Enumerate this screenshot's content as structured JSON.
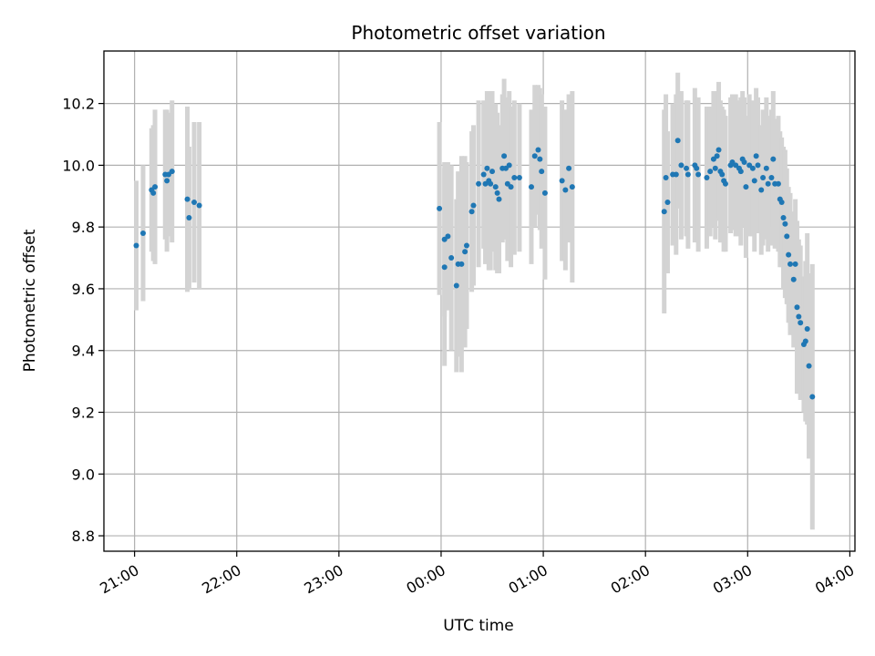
{
  "chart_data": {
    "type": "scatter",
    "title": "Photometric offset variation",
    "xlabel": "UTC time",
    "ylabel": "Photometric offset",
    "x_unit": "UTC",
    "xlim": [
      "20:42",
      "04:03"
    ],
    "ylim": [
      8.75,
      10.37
    ],
    "x_ticks": [
      "21:00",
      "22:00",
      "23:00",
      "00:00",
      "01:00",
      "02:00",
      "03:00",
      "04:00"
    ],
    "y_ticks": [
      "8.8",
      "9.0",
      "9.2",
      "9.4",
      "9.6",
      "9.8",
      "10.0",
      "10.2"
    ],
    "grid": true,
    "point_color": "#1f77b4",
    "errorbar_color": "#d3d3d3",
    "series": [
      {
        "points": [
          [
            "21:01",
            9.74,
            0.21
          ],
          [
            "21:05",
            9.78,
            0.22
          ],
          [
            "21:10",
            9.92,
            0.2
          ],
          [
            "21:11",
            9.91,
            0.22
          ],
          [
            "21:12",
            9.93,
            0.25
          ],
          [
            "21:18",
            9.97,
            0.21
          ],
          [
            "21:19",
            9.95,
            0.23
          ],
          [
            "21:20",
            9.97,
            0.2
          ],
          [
            "21:22",
            9.98,
            0.23
          ],
          [
            "21:31",
            9.89,
            0.3
          ],
          [
            "21:32",
            9.83,
            0.23
          ],
          [
            "21:35",
            9.88,
            0.26
          ],
          [
            "21:38",
            9.87,
            0.27
          ],
          [
            "23:59",
            9.86,
            0.28
          ],
          [
            "00:02",
            9.67,
            0.32
          ],
          [
            "00:02",
            9.76,
            0.25
          ],
          [
            "00:04",
            9.77,
            0.24
          ],
          [
            "00:06",
            9.7,
            0.3
          ],
          [
            "00:09",
            9.61,
            0.28
          ],
          [
            "00:10",
            9.68,
            0.3
          ],
          [
            "00:12",
            9.68,
            0.35
          ],
          [
            "00:14",
            9.72,
            0.31
          ],
          [
            "00:15",
            9.74,
            0.27
          ],
          [
            "00:18",
            9.85,
            0.26
          ],
          [
            "00:19",
            9.87,
            0.26
          ],
          [
            "00:22",
            9.94,
            0.27
          ],
          [
            "00:25",
            9.97,
            0.24
          ],
          [
            "00:26",
            9.94,
            0.26
          ],
          [
            "00:27",
            9.99,
            0.25
          ],
          [
            "00:28",
            9.95,
            0.29
          ],
          [
            "00:29",
            9.94,
            0.28
          ],
          [
            "00:30",
            9.98,
            0.26
          ],
          [
            "00:32",
            9.93,
            0.27
          ],
          [
            "00:33",
            9.91,
            0.26
          ],
          [
            "00:34",
            9.89,
            0.24
          ],
          [
            "00:36",
            9.99,
            0.24
          ],
          [
            "00:37",
            10.03,
            0.25
          ],
          [
            "00:38",
            9.99,
            0.23
          ],
          [
            "00:39",
            9.94,
            0.25
          ],
          [
            "00:40",
            10.0,
            0.24
          ],
          [
            "00:41",
            9.93,
            0.26
          ],
          [
            "00:43",
            9.96,
            0.25
          ],
          [
            "00:46",
            9.96,
            0.24
          ],
          [
            "00:53",
            9.93,
            0.25
          ],
          [
            "00:55",
            10.03,
            0.23
          ],
          [
            "00:57",
            10.05,
            0.21
          ],
          [
            "00:58",
            10.02,
            0.23
          ],
          [
            "00:59",
            9.98,
            0.25
          ],
          [
            "01:01",
            9.91,
            0.28
          ],
          [
            "01:11",
            9.95,
            0.26
          ],
          [
            "01:13",
            9.92,
            0.26
          ],
          [
            "01:15",
            9.99,
            0.24
          ],
          [
            "01:17",
            9.93,
            0.31
          ],
          [
            "02:11",
            9.85,
            0.33
          ],
          [
            "02:12",
            9.96,
            0.27
          ],
          [
            "02:13",
            9.88,
            0.23
          ],
          [
            "02:16",
            9.97,
            0.23
          ],
          [
            "02:18",
            9.97,
            0.26
          ],
          [
            "02:19",
            10.08,
            0.22
          ],
          [
            "02:21",
            10.0,
            0.24
          ],
          [
            "02:24",
            9.99,
            0.22
          ],
          [
            "02:25",
            9.97,
            0.24
          ],
          [
            "02:29",
            10.0,
            0.25
          ],
          [
            "02:30",
            9.99,
            0.22
          ],
          [
            "02:31",
            9.97,
            0.25
          ],
          [
            "02:36",
            9.96,
            0.23
          ],
          [
            "02:38",
            9.98,
            0.21
          ],
          [
            "02:40",
            10.02,
            0.22
          ],
          [
            "02:41",
            9.99,
            0.23
          ],
          [
            "02:42",
            10.03,
            0.21
          ],
          [
            "02:43",
            10.05,
            0.22
          ],
          [
            "02:44",
            9.98,
            0.23
          ],
          [
            "02:45",
            9.97,
            0.22
          ],
          [
            "02:46",
            9.95,
            0.23
          ],
          [
            "02:47",
            9.94,
            0.22
          ],
          [
            "02:50",
            10.0,
            0.22
          ],
          [
            "02:51",
            10.01,
            0.22
          ],
          [
            "02:53",
            10.0,
            0.23
          ],
          [
            "02:55",
            9.99,
            0.22
          ],
          [
            "02:56",
            9.98,
            0.24
          ],
          [
            "02:57",
            10.02,
            0.22
          ],
          [
            "02:58",
            10.01,
            0.21
          ],
          [
            "02:59",
            9.93,
            0.23
          ],
          [
            "03:01",
            10.0,
            0.23
          ],
          [
            "03:03",
            9.99,
            0.22
          ],
          [
            "03:04",
            9.95,
            0.23
          ],
          [
            "03:05",
            10.03,
            0.22
          ],
          [
            "03:06",
            10.0,
            0.22
          ],
          [
            "03:08",
            9.92,
            0.21
          ],
          [
            "03:09",
            9.96,
            0.22
          ],
          [
            "03:11",
            9.99,
            0.23
          ],
          [
            "03:12",
            9.94,
            0.22
          ],
          [
            "03:14",
            9.96,
            0.22
          ],
          [
            "03:15",
            10.02,
            0.22
          ],
          [
            "03:16",
            9.94,
            0.21
          ],
          [
            "03:18",
            9.94,
            0.22
          ],
          [
            "03:19",
            9.89,
            0.22
          ],
          [
            "03:20",
            9.88,
            0.21
          ],
          [
            "03:21",
            9.83,
            0.23
          ],
          [
            "03:22",
            9.81,
            0.24
          ],
          [
            "03:23",
            9.77,
            0.22
          ],
          [
            "03:24",
            9.71,
            0.22
          ],
          [
            "03:25",
            9.68,
            0.23
          ],
          [
            "03:27",
            9.63,
            0.22
          ],
          [
            "03:28",
            9.68,
            0.21
          ],
          [
            "03:29",
            9.54,
            0.28
          ],
          [
            "03:30",
            9.51,
            0.25
          ],
          [
            "03:31",
            9.49,
            0.25
          ],
          [
            "03:33",
            9.42,
            0.22
          ],
          [
            "03:34",
            9.43,
            0.26
          ],
          [
            "03:35",
            9.47,
            0.31
          ],
          [
            "03:36",
            9.35,
            0.3
          ],
          [
            "03:38",
            9.25,
            0.43
          ]
        ]
      }
    ]
  }
}
